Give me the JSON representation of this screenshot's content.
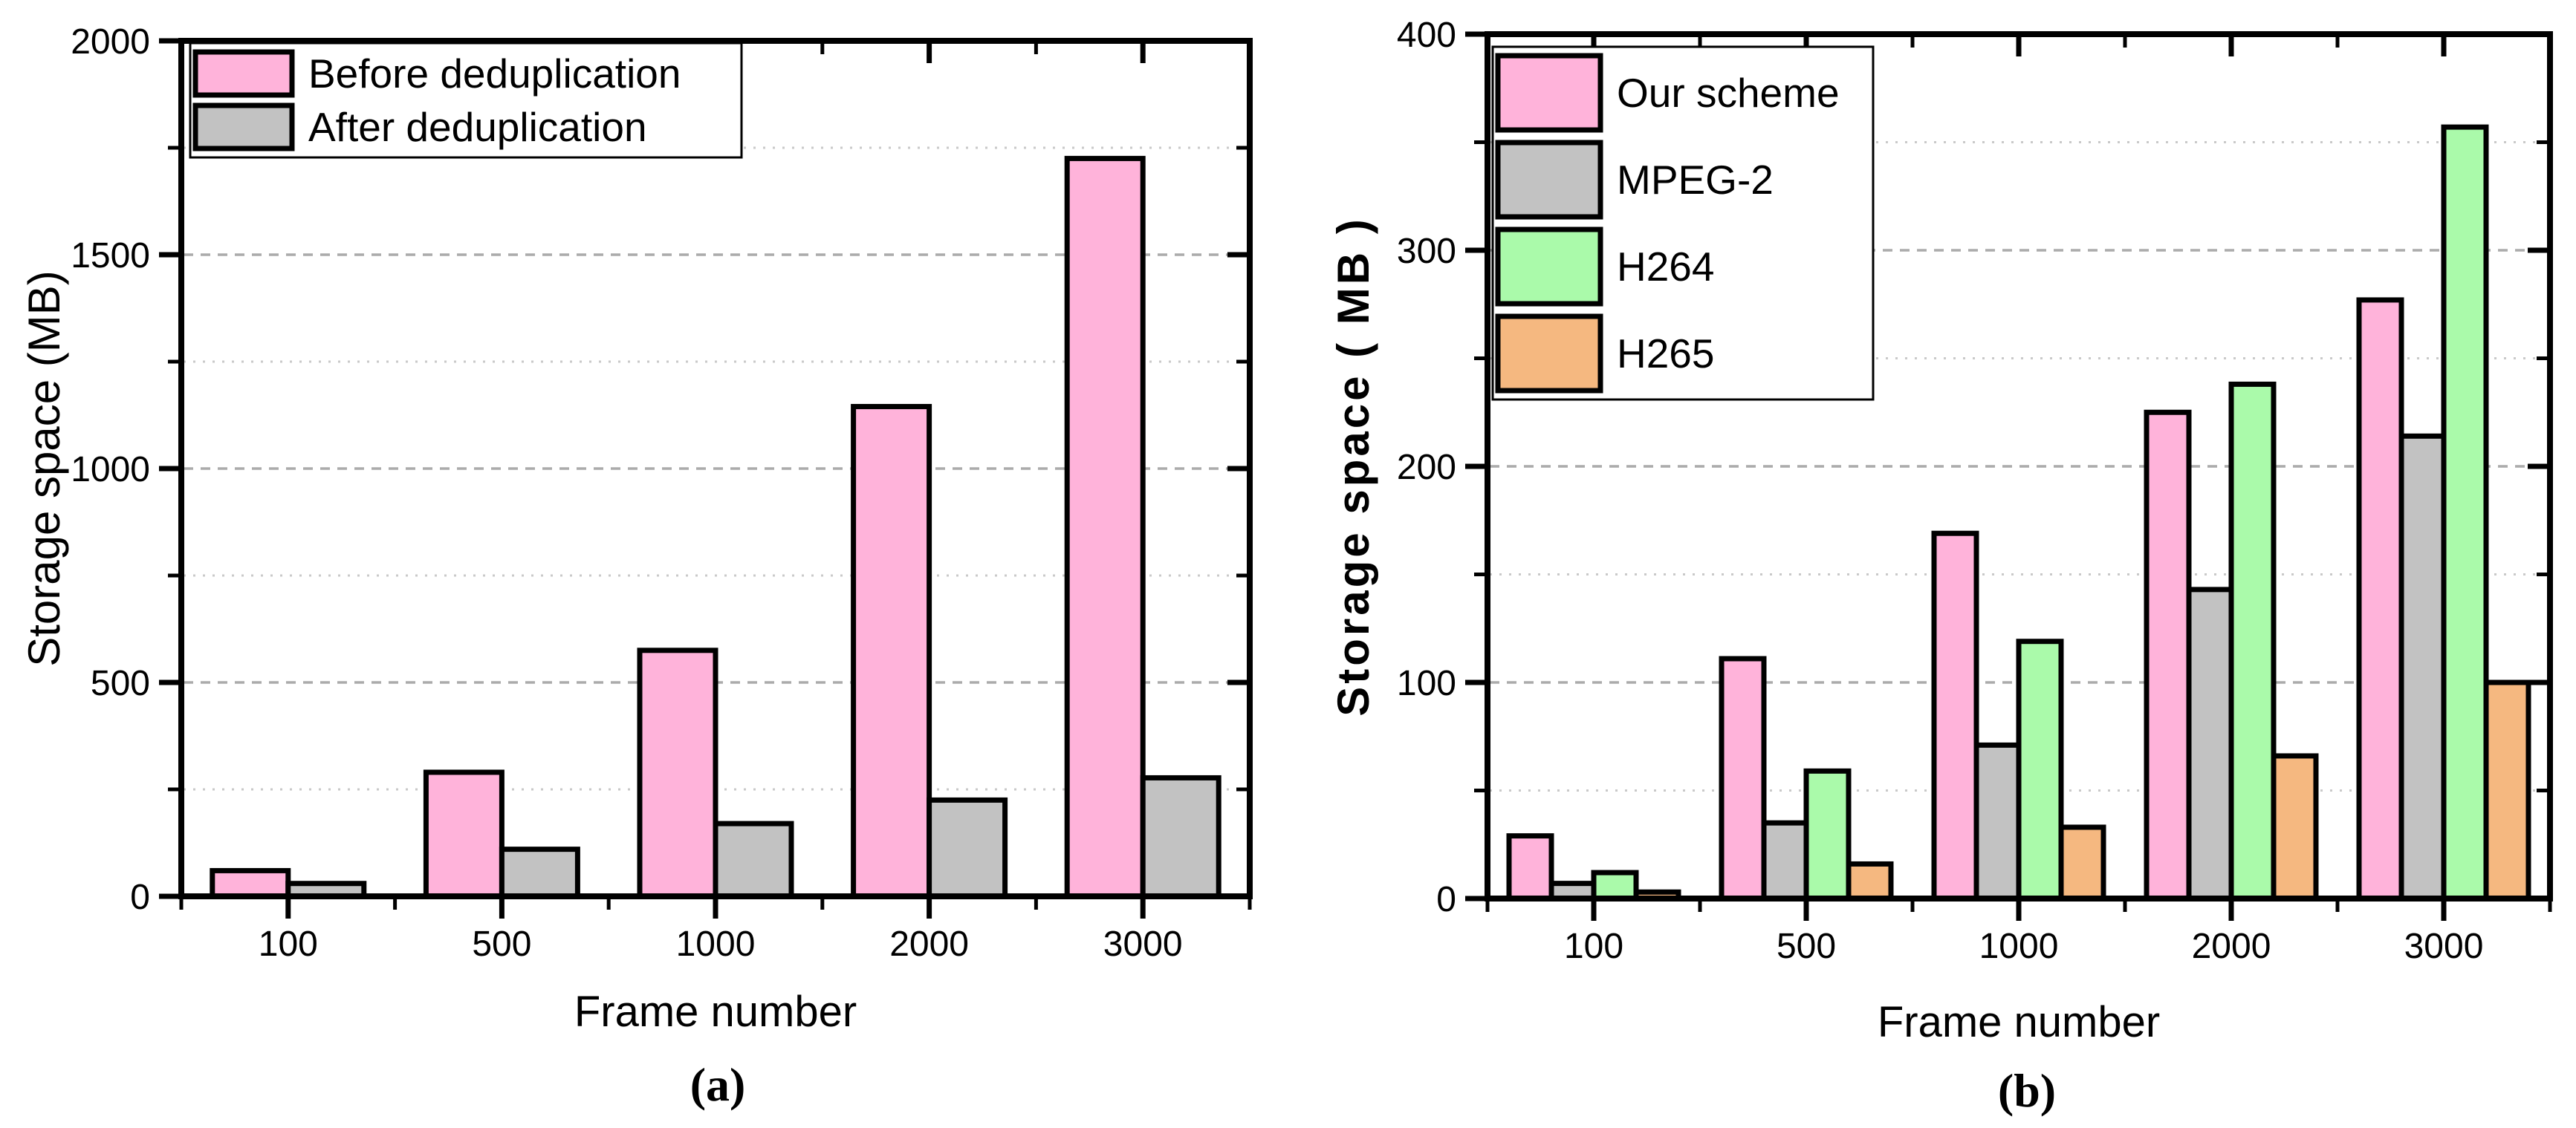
{
  "figure": {
    "background": "#ffffff",
    "units": "MB"
  },
  "chart_data": [
    {
      "id": "a",
      "type": "bar",
      "caption": "(a)",
      "xlabel": "Frame number",
      "ylabel": "Storage space (MB)",
      "ylabel_bold": false,
      "categories": [
        "100",
        "500",
        "1000",
        "2000",
        "3000"
      ],
      "ylim": [
        0,
        2000
      ],
      "ytick_major": 500,
      "ytick_minor": 250,
      "ytick_labels": [
        "0",
        "500",
        "1000",
        "1500",
        "2000"
      ],
      "grid": "horizontal, dotted minor + dashed major, light gray",
      "legend_position": "top-left",
      "legend_entries": [
        "Before deduplication",
        "After deduplication"
      ],
      "series": [
        {
          "name": "Before deduplication",
          "color": "#ffb3da",
          "values": [
            60,
            290,
            575,
            1145,
            1725
          ]
        },
        {
          "name": "After deduplication",
          "color": "#c2c2c2",
          "values": [
            30,
            110,
            170,
            225,
            277
          ]
        }
      ]
    },
    {
      "id": "b",
      "type": "bar",
      "caption": "(b)",
      "xlabel": "Frame number",
      "ylabel": "Storage space ( MB )",
      "ylabel_bold": true,
      "categories": [
        "100",
        "500",
        "1000",
        "2000",
        "3000"
      ],
      "ylim": [
        0,
        400
      ],
      "ytick_major": 100,
      "ytick_minor": 50,
      "ytick_labels": [
        "0",
        "100",
        "200",
        "300",
        "400"
      ],
      "grid": "horizontal, dotted minor + dashed major, light gray",
      "legend_position": "top-left",
      "legend_entries": [
        "Our scheme",
        "MPEG-2",
        "H264",
        "H265"
      ],
      "series": [
        {
          "name": "Our scheme",
          "color": "#ffb3da",
          "values": [
            29,
            111,
            169,
            225,
            277
          ]
        },
        {
          "name": "MPEG-2",
          "color": "#c2c2c2",
          "values": [
            7,
            35,
            71,
            143,
            214
          ]
        },
        {
          "name": "H264",
          "color": "#aafaaa",
          "values": [
            12,
            59,
            119,
            238,
            357
          ]
        },
        {
          "name": "H265",
          "color": "#f5b880",
          "values": [
            3,
            16,
            33,
            66,
            100
          ]
        }
      ]
    }
  ]
}
